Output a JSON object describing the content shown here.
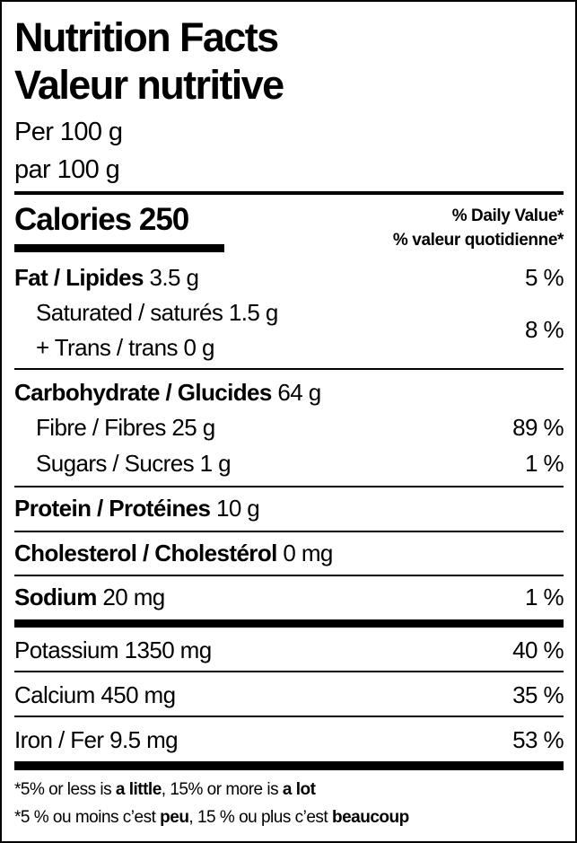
{
  "header": {
    "title_en": "Nutrition Facts",
    "title_fr": "Valeur nutritive",
    "serving_en": "Per 100 g",
    "serving_fr": "par 100 g"
  },
  "calories": {
    "label": "Calories",
    "value": "250"
  },
  "daily_value_header": {
    "en": "% Daily Value*",
    "fr": "% valeur quotidienne*"
  },
  "nutrients": {
    "fat": {
      "label": "Fat / Lipides",
      "amount": "3.5 g",
      "dv": "5 %"
    },
    "saturated": {
      "label": "Saturated / saturés",
      "amount": "1.5 g"
    },
    "trans": {
      "label": "+ Trans / trans",
      "amount": "0 g"
    },
    "sat_trans_dv": "8 %",
    "carbohydrate": {
      "label": "Carbohydrate / Glucides",
      "amount": "64 g"
    },
    "fibre": {
      "label": "Fibre / Fibres",
      "amount": "25 g",
      "dv": "89 %"
    },
    "sugars": {
      "label": "Sugars / Sucres",
      "amount": "1 g",
      "dv": "1 %"
    },
    "protein": {
      "label": "Protein / Protéines",
      "amount": "10 g"
    },
    "cholesterol": {
      "label": "Cholesterol / Cholestérol",
      "amount": "0 mg"
    },
    "sodium": {
      "label": "Sodium",
      "amount": "20 mg",
      "dv": "1 %"
    },
    "potassium": {
      "label": "Potassium",
      "amount": "1350 mg",
      "dv": "40 %"
    },
    "calcium": {
      "label": "Calcium",
      "amount": "450 mg",
      "dv": "35 %"
    },
    "iron": {
      "label": "Iron / Fer",
      "amount": "9.5 mg",
      "dv": "53 %"
    }
  },
  "footnote": {
    "en": {
      "a": "*5% or less is ",
      "b": "a little",
      "c": ", 15% or more is ",
      "d": "a lot"
    },
    "fr": {
      "a": "*5 % ou moins c’est ",
      "b": "peu",
      "c": ", 15 % ou plus c’est ",
      "d": "beaucoup"
    }
  }
}
